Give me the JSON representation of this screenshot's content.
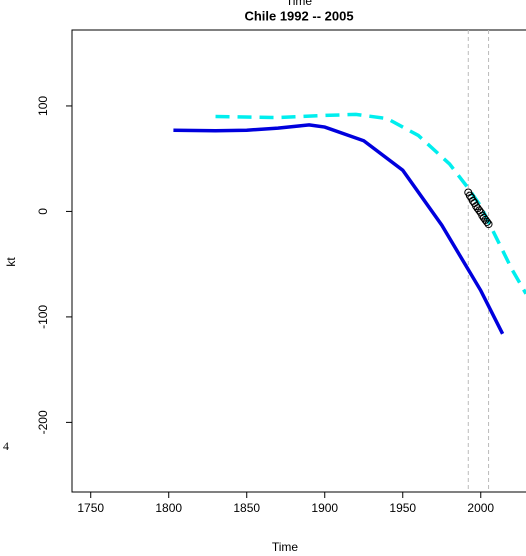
{
  "chart_data": {
    "type": "line",
    "top_label": "Time",
    "title": "Chile 1992 -- 2005",
    "x_label": "Time",
    "y_label": "kt",
    "margin_text": "4",
    "xlim": [
      1738,
      2029
    ],
    "xticks": [
      1750,
      1800,
      1850,
      1900,
      1950,
      2000
    ],
    "ylim": [
      -266,
      172
    ],
    "yticks": [
      -200,
      -100,
      0,
      100
    ],
    "vlines": [
      1992,
      2005
    ],
    "vline_color": "#bbbbbb",
    "series": [
      {
        "color": "#0000dd",
        "style": "solid",
        "x": [
          1803,
          1830,
          1850,
          1870,
          1890,
          1900,
          1925,
          1950,
          1975,
          2000,
          2014
        ],
        "values": [
          77,
          76.5,
          77,
          79,
          82,
          80,
          67,
          39,
          -13,
          -75,
          -116
        ]
      },
      {
        "color": "#00eeee",
        "style": "dashed",
        "x": [
          1830,
          1870,
          1900,
          1920,
          1940,
          1960,
          1980,
          1992,
          2000,
          2010,
          2020,
          2029
        ],
        "values": [
          90,
          89,
          91,
          92,
          88,
          72,
          45,
          22,
          5,
          -25,
          -55,
          -78
        ]
      },
      {
        "color": "#000000",
        "style": "points",
        "x": [
          1992,
          1993,
          1994,
          1995,
          1996,
          1997,
          1998,
          1999,
          2000,
          2001,
          2002,
          2003,
          2004,
          2005
        ],
        "values": [
          18,
          15,
          13,
          10,
          8,
          5,
          3,
          1,
          -1,
          -4,
          -6,
          -8,
          -10,
          -12
        ]
      }
    ]
  }
}
